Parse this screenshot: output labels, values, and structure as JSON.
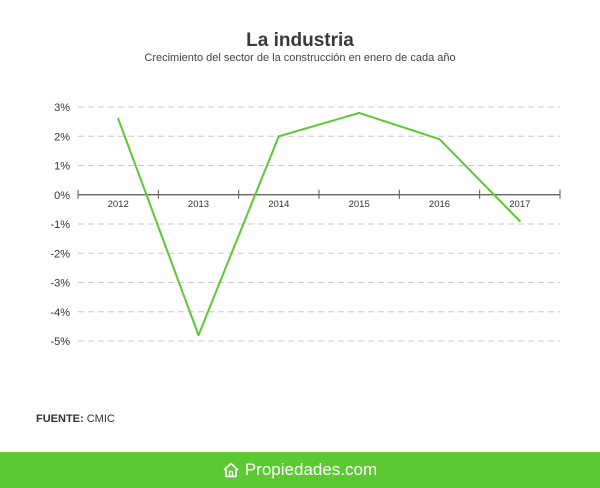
{
  "chart_data": {
    "type": "line",
    "title": "La industria",
    "subtitle": "Crecimiento del sector de la construcción en enero de cada año",
    "x_labels": [
      "2012",
      "2013",
      "2014",
      "2015",
      "2016",
      "2017"
    ],
    "y_ticks": [
      3,
      2,
      1,
      0,
      -1,
      -2,
      -3,
      -4,
      -5
    ],
    "y_tick_labels": [
      "3%",
      "2%",
      "1%",
      "0%",
      "-1%",
      "-2%",
      "-3%",
      "-4%",
      "-5%"
    ],
    "ylim": [
      -5,
      3
    ],
    "grid": true,
    "line_color": "#5cc832",
    "series": [
      {
        "values": [
          2.6,
          -4.8,
          2.0,
          2.8,
          1.9,
          -0.9
        ]
      }
    ]
  },
  "source": {
    "label": "FUENTE:",
    "value": "CMIC"
  },
  "footer": {
    "brand_main": "Propiedades",
    "brand_suffix": ".com",
    "background": "#5cc832",
    "icon": "house-logo-icon"
  }
}
